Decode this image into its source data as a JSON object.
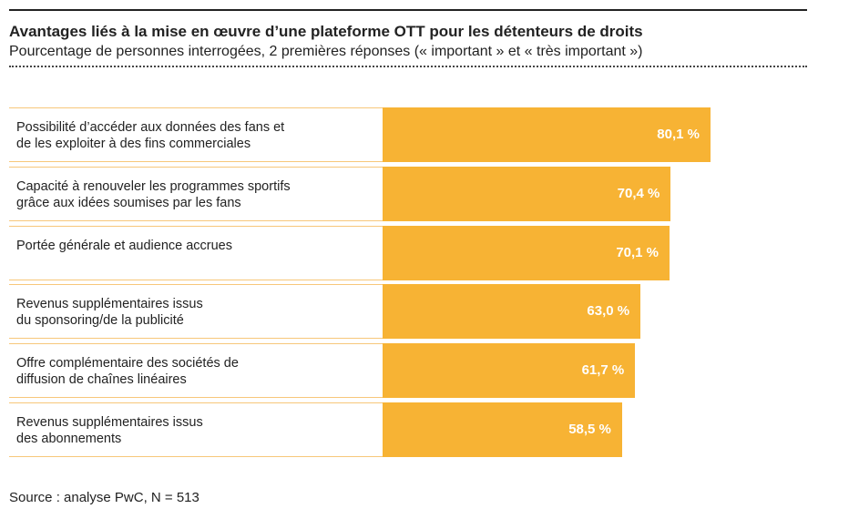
{
  "chart_data": {
    "type": "bar",
    "title": "Avantages liés à la mise en œuvre d’une plateforme OTT pour les détenteurs de droits",
    "subtitle": "Pourcentage de personnes interrogées, 2 premières réponses (« important » et « très important »)",
    "categories": [
      "Possibilité d’accéder aux données des fans et\nde les exploiter à des fins commerciales",
      "Capacité à renouveler les programmes sportifs\ngrâce aux idées soumises par les fans",
      "Portée générale et audience accrues",
      "Revenus supplémentaires issus\ndu sponsoring/de la publicité",
      "Offre complémentaire des sociétés de\ndiffusion de chaînes linéaires",
      "Revenus supplémentaires issus\ndes abonnements"
    ],
    "values": [
      80.1,
      70.4,
      70.1,
      63.0,
      61.7,
      58.5
    ],
    "value_labels": [
      "80,1 %",
      "70,4 %",
      "70,1 %",
      "63,0 %",
      "61,7 %",
      "58,5 %"
    ],
    "color": "#f7b334",
    "source": "Source : analyse PwC, N = 513"
  }
}
